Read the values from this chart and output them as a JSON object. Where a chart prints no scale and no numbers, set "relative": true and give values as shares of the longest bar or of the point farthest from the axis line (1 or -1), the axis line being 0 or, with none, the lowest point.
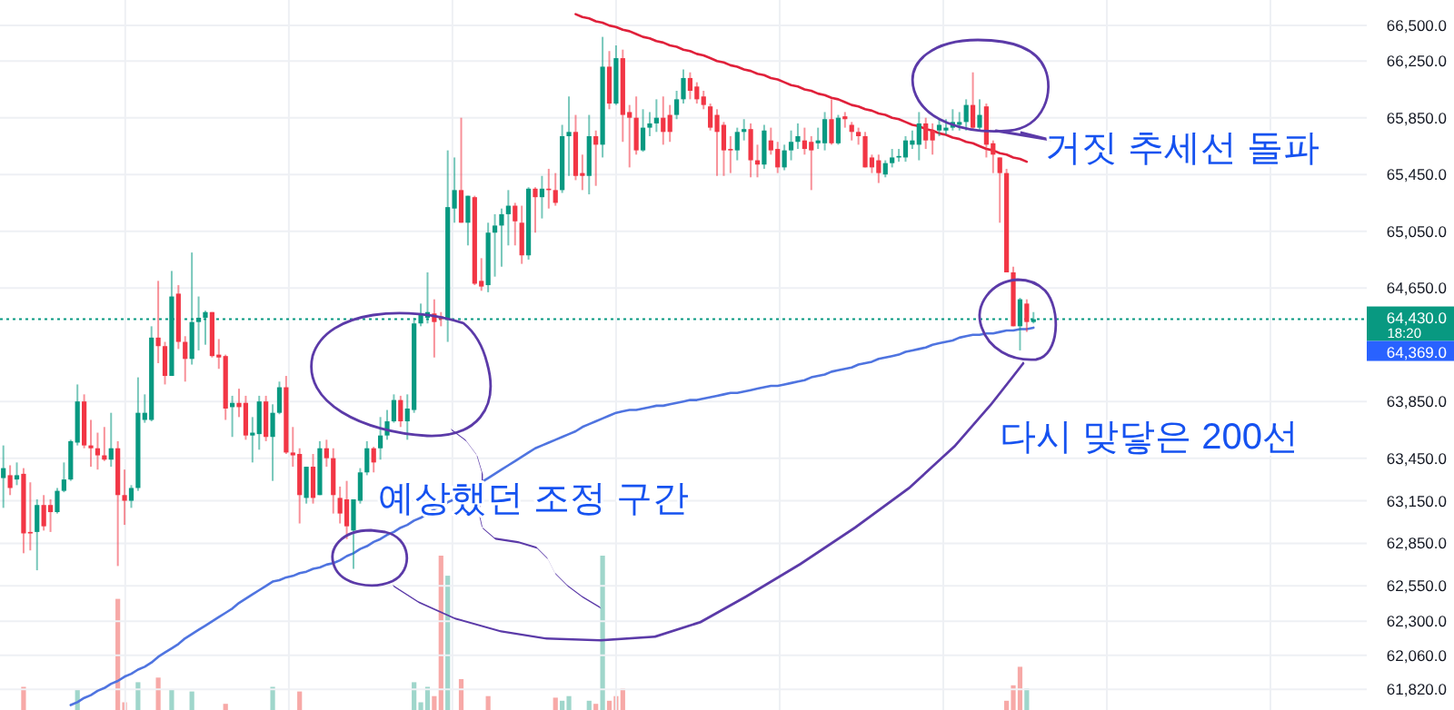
{
  "chart_data": [
    {
      "type": "candlestick",
      "categories": [
        null,
        null,
        null,
        null,
        null,
        null,
        null,
        null,
        null,
        null,
        null,
        null,
        null,
        null,
        null,
        null,
        null,
        null,
        null,
        null,
        null,
        null,
        null,
        null,
        null,
        null,
        null,
        null,
        null,
        null,
        null,
        null,
        null,
        null,
        null,
        null,
        null,
        null,
        null,
        null,
        null,
        null,
        null,
        null,
        null,
        null,
        null,
        null,
        null,
        null,
        null,
        null,
        null,
        null,
        null,
        null,
        null,
        null,
        null,
        null,
        null,
        null,
        null,
        null,
        null,
        null,
        null,
        null,
        null,
        null,
        null,
        null,
        null,
        null,
        null,
        null,
        null,
        null,
        null,
        null,
        null,
        null,
        null,
        null,
        null,
        null,
        null,
        null,
        null,
        null,
        null,
        null,
        null,
        null,
        null,
        null,
        null,
        null,
        null,
        null,
        null,
        null,
        null,
        null,
        null,
        null,
        null,
        null,
        null,
        null,
        null,
        null,
        null,
        null,
        null,
        null,
        null,
        null,
        null,
        null,
        null,
        null,
        null,
        null,
        null,
        null,
        null,
        null,
        null,
        null,
        null,
        null,
        null,
        null,
        null,
        null,
        null,
        null,
        null,
        null,
        null,
        null,
        null,
        null,
        null,
        null,
        null,
        null,
        null,
        null,
        null,
        null,
        null,
        null,
        null,
        null,
        null,
        null,
        null,
        null,
        null,
        null,
        null,
        null,
        null,
        null,
        null,
        null,
        null,
        null,
        null,
        null,
        null,
        null,
        null,
        null,
        null,
        null,
        null,
        null,
        null,
        null,
        null,
        null,
        null,
        null,
        null,
        null,
        null,
        null,
        null,
        null,
        null,
        null,
        null,
        null,
        null,
        null,
        null,
        null,
        null,
        null,
        null
      ],
      "ohlc": [
        [
          63310,
          63540,
          63100,
          63380
        ],
        [
          63330,
          63400,
          63190,
          63240
        ],
        [
          63300,
          63420,
          63260,
          63330
        ],
        [
          63340,
          63380,
          62780,
          62920
        ],
        [
          62930,
          63280,
          62800,
          62920
        ],
        [
          62930,
          63160,
          62660,
          63120
        ],
        [
          63120,
          63190,
          62940,
          62970
        ],
        [
          63120,
          63160,
          62930,
          63070
        ],
        [
          63070,
          63240,
          63060,
          63220
        ],
        [
          63220,
          63420,
          63210,
          63300
        ],
        [
          63300,
          63580,
          63290,
          63570
        ],
        [
          63560,
          63970,
          63540,
          63850
        ],
        [
          63850,
          63900,
          63520,
          63540
        ],
        [
          63540,
          63720,
          63390,
          63520
        ],
        [
          63520,
          63630,
          63370,
          63470
        ],
        [
          63470,
          63670,
          63430,
          63440
        ],
        [
          63440,
          63770,
          63390,
          63520
        ],
        [
          63520,
          63570,
          62690,
          63190
        ],
        [
          63190,
          63370,
          62980,
          63150
        ],
        [
          63150,
          63260,
          63100,
          63240
        ],
        [
          63240,
          64020,
          63220,
          63770
        ],
        [
          63720,
          63900,
          63700,
          63770
        ],
        [
          63720,
          64380,
          63710,
          64300
        ],
        [
          64300,
          64700,
          64120,
          64240
        ],
        [
          64240,
          64270,
          63970,
          64030
        ],
        [
          64030,
          64770,
          64030,
          64590
        ],
        [
          64610,
          64670,
          64220,
          64270
        ],
        [
          64270,
          64310,
          63990,
          64150
        ],
        [
          64150,
          64900,
          64110,
          64410
        ],
        [
          64410,
          64590,
          64210,
          64440
        ],
        [
          64440,
          64490,
          64250,
          64480
        ],
        [
          64480,
          64480,
          64160,
          64170
        ],
        [
          64180,
          64290,
          64080,
          64160
        ],
        [
          64170,
          64180,
          63720,
          63800
        ],
        [
          63810,
          63890,
          63600,
          63840
        ],
        [
          63840,
          63940,
          63740,
          63810
        ],
        [
          63840,
          63890,
          63580,
          63610
        ],
        [
          63610,
          63740,
          63420,
          63630
        ],
        [
          63620,
          63890,
          63510,
          63850
        ],
        [
          63850,
          63890,
          63570,
          63600
        ],
        [
          63600,
          63830,
          63290,
          63770
        ],
        [
          63770,
          63990,
          63760,
          63950
        ],
        [
          63950,
          64030,
          63480,
          63490
        ],
        [
          63490,
          63670,
          63390,
          63470
        ],
        [
          63480,
          63520,
          62990,
          63190
        ],
        [
          63170,
          63390,
          63130,
          63390
        ],
        [
          63390,
          63480,
          63130,
          63170
        ],
        [
          63190,
          63570,
          63190,
          63520
        ],
        [
          63520,
          63580,
          63390,
          63450
        ],
        [
          63450,
          63520,
          63060,
          63190
        ],
        [
          63170,
          63250,
          62990,
          63060
        ],
        [
          63160,
          63290,
          62880,
          62970
        ],
        [
          62940,
          63160,
          62670,
          63160
        ],
        [
          63150,
          63380,
          63130,
          63350
        ],
        [
          63350,
          63570,
          63330,
          63520
        ],
        [
          63520,
          63530,
          63350,
          63420
        ],
        [
          63520,
          63740,
          63440,
          63610
        ],
        [
          63610,
          63790,
          63580,
          63710
        ],
        [
          63710,
          63900,
          63700,
          63860
        ],
        [
          63860,
          63890,
          63670,
          63710
        ],
        [
          63710,
          63900,
          63580,
          63800
        ],
        [
          63790,
          64440,
          63770,
          64400
        ],
        [
          64400,
          64540,
          64380,
          64470
        ],
        [
          64440,
          64760,
          64400,
          64480
        ],
        [
          64470,
          64570,
          64160,
          64410
        ],
        [
          64450,
          64480,
          64380,
          64430
        ],
        [
          64430,
          65620,
          64270,
          65220
        ],
        [
          65210,
          65570,
          65110,
          65340
        ],
        [
          65340,
          65850,
          65110,
          65110
        ],
        [
          65110,
          65300,
          64950,
          65300
        ],
        [
          65290,
          65300,
          64670,
          64680
        ],
        [
          64700,
          64860,
          64630,
          64660
        ],
        [
          64670,
          65110,
          64620,
          65040
        ],
        [
          65040,
          65170,
          64730,
          65090
        ],
        [
          65090,
          65210,
          64800,
          65170
        ],
        [
          65170,
          65340,
          64950,
          65230
        ],
        [
          65230,
          65250,
          64950,
          65120
        ],
        [
          65110,
          65230,
          64820,
          64880
        ],
        [
          64880,
          65360,
          64850,
          65350
        ],
        [
          65350,
          65360,
          65040,
          65290
        ],
        [
          65290,
          65440,
          65140,
          65350
        ],
        [
          65350,
          65490,
          65210,
          65340
        ],
        [
          65340,
          65460,
          65230,
          65250
        ],
        [
          65340,
          65800,
          65320,
          65720
        ],
        [
          65720,
          66000,
          65440,
          65750
        ],
        [
          65750,
          65870,
          65410,
          65440
        ],
        [
          65460,
          65590,
          65340,
          65440
        ],
        [
          65440,
          65870,
          65310,
          65720
        ],
        [
          65720,
          65760,
          65370,
          65660
        ],
        [
          65660,
          66420,
          65570,
          66210
        ],
        [
          66210,
          66320,
          65910,
          65950
        ],
        [
          65950,
          66360,
          65940,
          66270
        ],
        [
          66270,
          66330,
          65680,
          65870
        ],
        [
          65890,
          65940,
          65500,
          65850
        ],
        [
          65850,
          66000,
          65590,
          65620
        ],
        [
          65620,
          65910,
          65610,
          65780
        ],
        [
          65780,
          65890,
          65720,
          65810
        ],
        [
          65810,
          65980,
          65750,
          65850
        ],
        [
          65850,
          66000,
          65660,
          65750
        ],
        [
          65870,
          65940,
          65680,
          65750
        ],
        [
          65870,
          66040,
          65840,
          65980
        ],
        [
          65980,
          66190,
          65950,
          66130
        ],
        [
          66130,
          66170,
          65980,
          66040
        ],
        [
          66070,
          66100,
          65950,
          65980
        ],
        [
          66000,
          66040,
          65910,
          65940
        ],
        [
          65930,
          65950,
          65760,
          65780
        ],
        [
          65870,
          65910,
          65440,
          65750
        ],
        [
          65800,
          65820,
          65440,
          65620
        ],
        [
          65630,
          65720,
          65460,
          65620
        ],
        [
          65620,
          65780,
          65550,
          65750
        ],
        [
          65750,
          65840,
          65690,
          65770
        ],
        [
          65770,
          65810,
          65430,
          65550
        ],
        [
          65550,
          65660,
          65430,
          65520
        ],
        [
          65520,
          65800,
          65490,
          65760
        ],
        [
          65690,
          65780,
          65590,
          65620
        ],
        [
          65630,
          65680,
          65460,
          65500
        ],
        [
          65500,
          65660,
          65480,
          65620
        ],
        [
          65620,
          65760,
          65550,
          65680
        ],
        [
          65680,
          65810,
          65630,
          65720
        ],
        [
          65690,
          65780,
          65590,
          65630
        ],
        [
          65680,
          65720,
          65340,
          65620
        ],
        [
          65670,
          65780,
          65630,
          65690
        ],
        [
          65670,
          65890,
          65620,
          65840
        ],
        [
          65840,
          65980,
          65660,
          65670
        ],
        [
          65670,
          65870,
          65660,
          65850
        ],
        [
          65860,
          65890,
          65780,
          65840
        ],
        [
          65800,
          65820,
          65690,
          65750
        ],
        [
          65750,
          65780,
          65660,
          65720
        ],
        [
          65720,
          65750,
          65500,
          65500
        ],
        [
          65570,
          65590,
          65460,
          65500
        ],
        [
          65550,
          65590,
          65390,
          65460
        ],
        [
          65450,
          65550,
          65430,
          65530
        ],
        [
          65530,
          65630,
          65500,
          65570
        ],
        [
          65570,
          65630,
          65540,
          65580
        ],
        [
          65570,
          65720,
          65540,
          65690
        ],
        [
          65660,
          65760,
          65630,
          65690
        ],
        [
          65660,
          65890,
          65550,
          65810
        ],
        [
          65810,
          65850,
          65630,
          65690
        ],
        [
          65760,
          65810,
          65590,
          65690
        ],
        [
          65760,
          65840,
          65720,
          65800
        ],
        [
          65760,
          65840,
          65730,
          65780
        ],
        [
          65780,
          65910,
          65760,
          65820
        ],
        [
          65800,
          65890,
          65760,
          65820
        ],
        [
          65820,
          65980,
          65760,
          65940
        ],
        [
          65940,
          66170,
          65760,
          65780
        ],
        [
          65780,
          65980,
          65760,
          65870
        ],
        [
          65930,
          65950,
          65570,
          65660
        ],
        [
          65670,
          65690,
          65460,
          65590
        ],
        [
          65570,
          65570,
          65110,
          65460
        ],
        [
          65460,
          65490,
          64760,
          64760
        ],
        [
          64760,
          64800,
          64380,
          64380
        ],
        [
          64380,
          64580,
          64210,
          64570
        ],
        [
          64540,
          64570,
          64340,
          64410
        ],
        [
          64410,
          64480,
          64400,
          64430
        ],
        null,
        null,
        null,
        null,
        null,
        null,
        null,
        null,
        null,
        null,
        null,
        null,
        null,
        null,
        null,
        null,
        null,
        null,
        null,
        null,
        null,
        null,
        null,
        null,
        null,
        null,
        null,
        null,
        null,
        null,
        null,
        null,
        null,
        null,
        null,
        null,
        null,
        null,
        null,
        null,
        null,
        null,
        null,
        null,
        null,
        null,
        null,
        null,
        null
      ],
      "series": [
        {
          "type": "line",
          "color": "#4f74e0",
          "values": [
            null,
            null,
            null,
            null,
            null,
            null,
            null,
            null,
            null,
            null,
            61710,
            61730,
            61760,
            61780,
            61810,
            61830,
            61860,
            61880,
            61910,
            61930,
            61960,
            61980,
            62010,
            62050,
            62080,
            62110,
            62140,
            62180,
            62210,
            62240,
            62270,
            62300,
            62330,
            62360,
            62390,
            62430,
            62460,
            62490,
            62520,
            62550,
            62580,
            62590,
            62610,
            62620,
            62640,
            62650,
            62670,
            62680,
            62700,
            62710,
            62730,
            62760,
            62780,
            62810,
            62830,
            62860,
            62880,
            62910,
            62930,
            62960,
            62980,
            63010,
            63030,
            63060,
            63090,
            63110,
            63140,
            63160,
            63190,
            63220,
            63250,
            63280,
            63310,
            63340,
            63370,
            63400,
            63430,
            63460,
            63490,
            63520,
            63540,
            63560,
            63580,
            63600,
            63620,
            63640,
            63670,
            63690,
            63710,
            63730,
            63750,
            63770,
            63780,
            63790,
            63790,
            63800,
            63810,
            63820,
            63820,
            63830,
            63840,
            63850,
            63860,
            63860,
            63870,
            63880,
            63890,
            63900,
            63910,
            63910,
            63920,
            63930,
            63940,
            63950,
            63960,
            63960,
            63970,
            63980,
            63990,
            64000,
            64020,
            64030,
            64040,
            64060,
            64070,
            64080,
            64090,
            64110,
            64120,
            64130,
            64150,
            64160,
            64170,
            64180,
            64200,
            64210,
            64220,
            64230,
            64250,
            64260,
            64270,
            64280,
            64300,
            64310,
            64320,
            64320,
            64330,
            64330,
            64340,
            64350,
            64350,
            64360,
            64360,
            64370,
            null,
            null,
            null,
            null,
            null,
            null,
            null,
            null,
            null,
            null,
            null,
            null,
            null,
            null,
            null,
            null,
            null,
            null,
            null,
            null,
            null,
            null,
            null,
            null,
            null,
            null,
            null,
            null,
            null,
            null,
            null,
            null,
            null,
            null,
            null,
            null,
            null,
            null,
            null,
            null,
            null,
            null,
            null,
            null,
            null,
            null,
            null,
            null,
            null
          ]
        },
        {
          "type": "line",
          "color": "#e0203a",
          "values": [
            null,
            null,
            null,
            null,
            null,
            null,
            null,
            null,
            null,
            null,
            null,
            null,
            null,
            null,
            null,
            null,
            null,
            null,
            null,
            null,
            null,
            null,
            null,
            null,
            null,
            null,
            null,
            null,
            null,
            null,
            null,
            null,
            null,
            null,
            null,
            null,
            null,
            null,
            null,
            null,
            null,
            null,
            null,
            null,
            null,
            null,
            null,
            null,
            null,
            null,
            null,
            null,
            null,
            null,
            null,
            null,
            null,
            null,
            null,
            null,
            null,
            null,
            null,
            null,
            null,
            null,
            null,
            null,
            null,
            null,
            null,
            null,
            null,
            null,
            null,
            null,
            null,
            null,
            null,
            null,
            null,
            null,
            null,
            null,
            null,
            66580,
            66560,
            66550,
            66530,
            66520,
            66500,
            66490,
            66470,
            66460,
            66440,
            66420,
            66410,
            66390,
            66380,
            66360,
            66350,
            66330,
            66320,
            66300,
            66290,
            66270,
            66250,
            66240,
            66220,
            66210,
            66190,
            66180,
            66160,
            66150,
            66130,
            66120,
            66100,
            66080,
            66070,
            66050,
            66040,
            66020,
            66010,
            65990,
            65980,
            65960,
            65940,
            65930,
            65910,
            65900,
            65880,
            65870,
            65850,
            65840,
            65820,
            65800,
            65790,
            65770,
            65760,
            65740,
            65730,
            65710,
            65700,
            65680,
            65670,
            65650,
            65630,
            65620,
            65600,
            65590,
            65570,
            65560,
            65540,
            null,
            null,
            null,
            null,
            null,
            null,
            null,
            null,
            null,
            null,
            null,
            null,
            null,
            null,
            null,
            null,
            null,
            null,
            null,
            null,
            null,
            null,
            null,
            null,
            null,
            null,
            null,
            null,
            null,
            null,
            null,
            null,
            null,
            null,
            null,
            null,
            null,
            null,
            null,
            null,
            null,
            null,
            null,
            null,
            null,
            null,
            null,
            null,
            null,
            null
          ]
        }
      ],
      "ylim": [
        61675,
        66680
      ],
      "yticks": [
        {
          "value": 66500,
          "label": "66,500.0"
        },
        {
          "value": 66250,
          "label": "66,250.0"
        },
        {
          "value": 65850,
          "label": "65,850.0"
        },
        {
          "value": 65450,
          "label": "65,450.0"
        },
        {
          "value": 65050,
          "label": "65,050.0"
        },
        {
          "value": 64650,
          "label": "64,650.0"
        },
        {
          "value": 63850,
          "label": "63,850.0"
        },
        {
          "value": 63450,
          "label": "63,450.0"
        },
        {
          "value": 63150,
          "label": "63,150.0"
        },
        {
          "value": 62850,
          "label": "62,850.0"
        },
        {
          "value": 62550,
          "label": "62,550.0"
        },
        {
          "value": 62300,
          "label": "62,300.0"
        },
        {
          "value": 62060,
          "label": "62,060.0"
        },
        {
          "value": 61820,
          "label": "61,820.0"
        }
      ],
      "grid": true,
      "tick_labels": "y",
      "ref_lines": [
        {
          "axis": "y",
          "value": 64430,
          "label": "64,430.0",
          "color": "#089981",
          "line_style": "dotted"
        }
      ],
      "annotations": [
        "거짓 추세선 돌파",
        "다시 맞닿은 200선",
        "예상했던 조정 구간",
        "18:20",
        "64,369.0"
      ]
    },
    {
      "type": "bar",
      "relative": true,
      "categories": [
        null,
        null,
        null,
        null,
        null,
        null,
        null,
        null,
        null,
        null,
        null,
        null,
        null,
        null,
        null,
        null,
        null,
        null,
        null,
        null,
        null,
        null,
        null,
        null,
        null,
        null,
        null,
        null,
        null,
        null,
        null,
        null,
        null,
        null,
        null,
        null,
        null,
        null,
        null,
        null,
        null,
        null,
        null,
        null,
        null,
        null,
        null,
        null,
        null,
        null,
        null,
        null,
        null,
        null,
        null,
        null,
        null,
        null,
        null,
        null,
        null,
        null,
        null,
        null,
        null,
        null,
        null,
        null,
        null,
        null,
        null,
        null,
        null,
        null,
        null,
        null,
        null,
        null,
        null,
        null,
        null,
        null,
        null,
        null,
        null,
        null,
        null,
        null,
        null,
        null,
        null,
        null,
        null,
        null,
        null,
        null,
        null,
        null,
        null,
        null,
        null,
        null,
        null,
        null,
        null,
        null,
        null,
        null,
        null,
        null,
        null,
        null,
        null,
        null,
        null,
        null,
        null,
        null,
        null,
        null,
        null,
        null,
        null,
        null,
        null,
        null,
        null,
        null,
        null,
        null,
        null,
        null,
        null,
        null,
        null,
        null,
        null,
        null,
        null,
        null,
        null,
        null,
        null,
        null,
        null,
        null,
        null,
        null,
        null,
        null,
        null,
        null,
        null,
        null,
        null,
        null,
        null,
        null,
        null,
        null,
        null,
        null,
        null,
        null,
        null,
        null,
        null,
        null,
        null,
        null,
        null,
        null,
        null,
        null,
        null,
        null,
        null,
        null,
        null,
        null,
        null,
        null,
        null,
        null,
        null,
        null,
        null,
        null,
        null,
        null,
        null,
        null,
        null,
        null,
        null,
        null,
        null,
        null,
        null,
        null,
        null,
        null,
        null
      ],
      "values": [
        null,
        null,
        null,
        0.15,
        null,
        null,
        null,
        null,
        null,
        null,
        null,
        0.13,
        null,
        null,
        null,
        null,
        null,
        0.72,
        0.05,
        null,
        0.18,
        null,
        null,
        0.21,
        null,
        0.13,
        null,
        null,
        0.12,
        null,
        null,
        null,
        null,
        0.04,
        null,
        null,
        null,
        null,
        null,
        null,
        0.15,
        null,
        null,
        null,
        0.12,
        null,
        null,
        null,
        null,
        null,
        null,
        null,
        null,
        null,
        null,
        null,
        null,
        null,
        null,
        null,
        null,
        0.18,
        0.05,
        0.15,
        0.09,
        1,
        0.87,
        null,
        0.2,
        null,
        null,
        null,
        0.09,
        null,
        null,
        null,
        null,
        null,
        null,
        null,
        null,
        null,
        0.08,
        0.06,
        0.09,
        null,
        null,
        0.06,
        0.04,
        1,
        0.06,
        0.09,
        0.14,
        null,
        null,
        null,
        null,
        null,
        null,
        null,
        null,
        null,
        null,
        null,
        null,
        null,
        null,
        null,
        null,
        null,
        null,
        null,
        null,
        null,
        null,
        null,
        null,
        null,
        null,
        null,
        null,
        null,
        null,
        null,
        null,
        null,
        null,
        null,
        null,
        null,
        null,
        null,
        null,
        null,
        null,
        null,
        null,
        null,
        null,
        null,
        null,
        null,
        null,
        null,
        null,
        null,
        null,
        null,
        null,
        0.06,
        0.16,
        0.28,
        0.14,
        null,
        null,
        null,
        null,
        null,
        null,
        null,
        null,
        null,
        null,
        null,
        null,
        null,
        null,
        null,
        null,
        null,
        null,
        null,
        null,
        null,
        null,
        null,
        null,
        null,
        null,
        null,
        null,
        null,
        null,
        null,
        null,
        null,
        null,
        null,
        null,
        null,
        null,
        null,
        null,
        null,
        null,
        null,
        null,
        null,
        null,
        null,
        null,
        null,
        null
      ],
      "colors": [
        null,
        null,
        null,
        "#f7a9a7",
        null,
        null,
        null,
        null,
        null,
        null,
        null,
        "#9fd6cb",
        null,
        null,
        null,
        null,
        null,
        "#f7a9a7",
        "#f7a9a7",
        null,
        "#9fd6cb",
        null,
        null,
        "#f7a9a7",
        null,
        "#9fd6cb",
        null,
        null,
        "#9fd6cb",
        null,
        null,
        null,
        null,
        "#f7a9a7",
        null,
        null,
        null,
        null,
        null,
        null,
        "#9fd6cb",
        null,
        null,
        null,
        "#f7a9a7",
        null,
        null,
        null,
        null,
        null,
        null,
        null,
        null,
        null,
        null,
        null,
        null,
        null,
        null,
        null,
        null,
        "#9fd6cb",
        "#9fd6cb",
        "#9fd6cb",
        "#f7a9a7",
        "#f7a9a7",
        "#9fd6cb",
        null,
        "#f7a9a7",
        null,
        null,
        null,
        "#f7a9a7",
        null,
        null,
        null,
        null,
        null,
        null,
        null,
        null,
        null,
        "#f7a9a7",
        "#9fd6cb",
        "#9fd6cb",
        null,
        null,
        "#9fd6cb",
        "#f7a9a7",
        "#9fd6cb",
        "#f7a9a7",
        "#f7a9a7",
        "#f7a9a7",
        null,
        null,
        null,
        null,
        null,
        null,
        null,
        null,
        null,
        null,
        null,
        null,
        null,
        null,
        null,
        null,
        null,
        null,
        null,
        null,
        null,
        null,
        null,
        null,
        null,
        null,
        null,
        null,
        null,
        null,
        null,
        null,
        null,
        null,
        null,
        null,
        null,
        null,
        null,
        null,
        null,
        null,
        null,
        null,
        null,
        null,
        null,
        null,
        null,
        null,
        null,
        null,
        null,
        null,
        null,
        null,
        "#f7a9a7",
        "#f7a9a7",
        "#f7a9a7",
        "#9fd6cb",
        null,
        null,
        null,
        null,
        null,
        null,
        null,
        null,
        null,
        null,
        null,
        null,
        null,
        null,
        null,
        null,
        null,
        null,
        null,
        null,
        null,
        null,
        null,
        null,
        null,
        null,
        null,
        null,
        null,
        null,
        null,
        null,
        null,
        null,
        null,
        null,
        null,
        null,
        null,
        null,
        null,
        null,
        null,
        null,
        null,
        null,
        null,
        null,
        null,
        null
      ]
    }
  ]
}
